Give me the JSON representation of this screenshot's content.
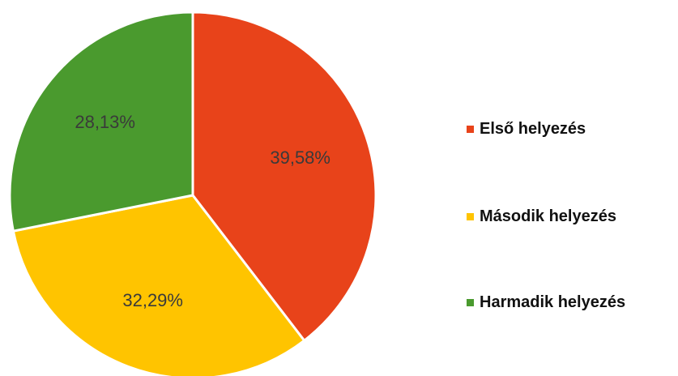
{
  "chart_data": {
    "type": "pie",
    "title": "",
    "slices": [
      {
        "label": "Első helyezés",
        "value": 39.58,
        "value_label": "39,58%",
        "color": "#e8431a"
      },
      {
        "label": "Második helyezés",
        "value": 32.29,
        "value_label": "32,29%",
        "color": "#ffc400"
      },
      {
        "label": "Harmadik helyezés",
        "value": 28.13,
        "value_label": "28,13%",
        "color": "#4a9a2e"
      }
    ],
    "start": "top",
    "direction": "clockwise",
    "legend": {
      "position": "right",
      "items": [
        "Első helyezés",
        "Második helyezés",
        "Harmadik helyezés"
      ]
    }
  }
}
